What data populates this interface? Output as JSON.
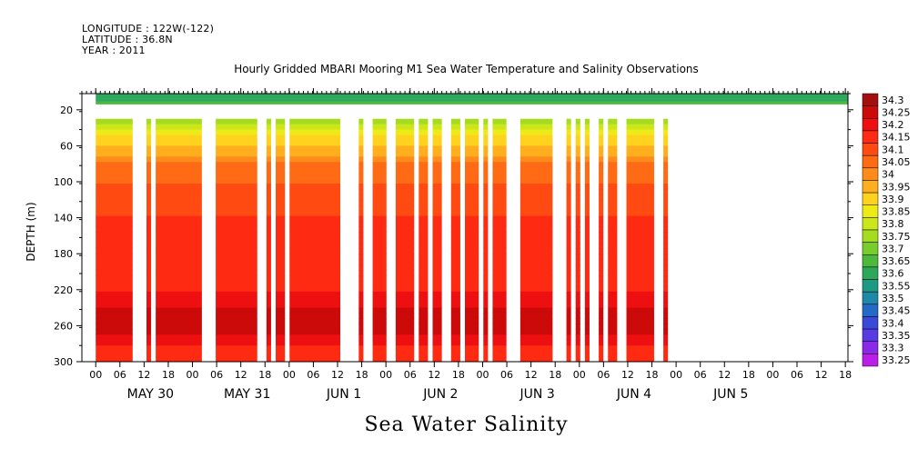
{
  "header": {
    "longitude": "LONGITUDE : 122W(-122)",
    "latitude": "LATITUDE : 36.8N",
    "year": "YEAR : 2011"
  },
  "title": "Hourly Gridded MBARI Mooring M1 Sea Water Temperature and Salinity Observations",
  "variable_label": "Sea Water Salinity",
  "chart_data": {
    "type": "heatmap",
    "title": "Hourly Gridded MBARI Mooring M1 Sea Water Temperature and Salinity Observations",
    "xlabel": "",
    "ylabel": "DEPTH (m)",
    "x_hour_ticks": [
      "00",
      "06",
      "12",
      "18",
      "00",
      "06",
      "12",
      "18",
      "00",
      "06",
      "12",
      "18",
      "00",
      "06",
      "12",
      "18",
      "00",
      "06",
      "12",
      "18",
      "00",
      "06",
      "12",
      "18",
      "00",
      "06",
      "12",
      "18",
      "00",
      "06",
      "12",
      "18"
    ],
    "x_day_labels": [
      "MAY 30",
      "MAY 31",
      "JUN  1",
      "JUN  2",
      "JUN  3",
      "JUN  4",
      "JUN  5"
    ],
    "x_range_hours": [
      0,
      166
    ],
    "y_ticks": [
      "20",
      "60",
      "100",
      "140",
      "180",
      "220",
      "260",
      "300"
    ],
    "ylim": [
      300,
      2
    ],
    "colorbar": {
      "levels": [
        "34.3",
        "34.25",
        "34.2",
        "34.15",
        "34.1",
        "34.05",
        "34",
        "33.95",
        "33.9",
        "33.85",
        "33.8",
        "33.75",
        "33.7",
        "33.65",
        "33.6",
        "33.55",
        "33.5",
        "33.45",
        "33.4",
        "33.35",
        "33.3",
        "33.25"
      ],
      "colors": [
        "#a50e0e",
        "#cc0a0a",
        "#ee1010",
        "#ff2a12",
        "#ff4a12",
        "#ff6a14",
        "#ff8c1a",
        "#ffae1e",
        "#ffd21e",
        "#eeea18",
        "#cce61c",
        "#a6dc20",
        "#78cc2c",
        "#4cb83c",
        "#2ca85a",
        "#1e9a82",
        "#1e88a8",
        "#2468c8",
        "#3a4ad8",
        "#5a3ae4",
        "#8a2ae6",
        "#bb1ee8"
      ]
    },
    "profile": {
      "depths_m": [
        2,
        20,
        40,
        60,
        80,
        100,
        120,
        140,
        160,
        180,
        200,
        220,
        240,
        260,
        280,
        300
      ],
      "salinity": [
        33.6,
        33.7,
        33.85,
        33.95,
        34.05,
        34.1,
        34.12,
        34.15,
        34.15,
        34.15,
        34.18,
        34.2,
        34.25,
        34.28,
        34.2,
        34.15
      ]
    },
    "data_segments_hours": [
      [
        3,
        11
      ],
      [
        14,
        15
      ],
      [
        16,
        26
      ],
      [
        29,
        38
      ],
      [
        40,
        41
      ],
      [
        42,
        44
      ],
      [
        45,
        56
      ],
      [
        60,
        61
      ],
      [
        63,
        66
      ],
      [
        68,
        72
      ],
      [
        73,
        75
      ],
      [
        76,
        78
      ],
      [
        80,
        82
      ],
      [
        83,
        86
      ],
      [
        87,
        88
      ],
      [
        89,
        92
      ],
      [
        95,
        102
      ],
      [
        105,
        106
      ],
      [
        107,
        108
      ],
      [
        109,
        110
      ],
      [
        112,
        113
      ],
      [
        114,
        116
      ],
      [
        118,
        124
      ],
      [
        126,
        127
      ]
    ],
    "surface_only_hours": [
      [
        3,
        166
      ]
    ],
    "grid": false
  }
}
